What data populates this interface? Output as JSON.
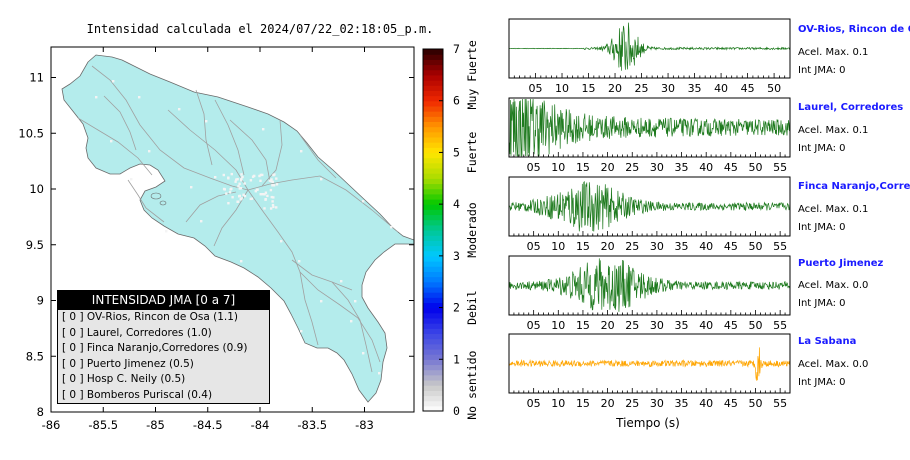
{
  "map": {
    "title": "Intensidad calculada el 2024/07/22_02:18:05_p.m.",
    "x_ticks": [
      "-86",
      "-85.5",
      "-85",
      "-84.5",
      "-84",
      "-83.5",
      "-83"
    ],
    "y_ticks": [
      "11",
      "10.5",
      "10",
      "9.5",
      "9",
      "8.5",
      "8"
    ],
    "land_color": "#b4ecec",
    "road_color": "#a0a0a0"
  },
  "colorbar": {
    "ticks": [
      "0",
      "1",
      "2",
      "3",
      "4",
      "5",
      "6",
      "7"
    ],
    "labels": [
      "No sentido",
      "Debil",
      "Moderado",
      "Fuerte",
      "Muy Fuerte"
    ]
  },
  "legend": {
    "header": "INTENSIDAD JMA [0 a 7]",
    "items": [
      "[ 0 ]  OV-Rios, Rincon de Osa (1.1)",
      "[ 0 ]  Laurel, Corredores (1.0)",
      "[ 0 ]  Finca Naranjo,Corredores (0.9)",
      "[ 0 ]  Puerto Jimenez (0.5)",
      "[ 0 ]  Hosp C. Neily (0.5)",
      "[ 0 ]  Bomberos Puriscal (0.4)"
    ]
  },
  "stations": [
    {
      "name": "OV-Rios, Rincon de Osa",
      "accel": "Acel. Max. 0.1",
      "jma": "Int JMA: 0",
      "color": "#1e7a1e",
      "ticks": [
        "05",
        "10",
        "15",
        "20",
        "25",
        "30",
        "35",
        "40",
        "45",
        "50"
      ]
    },
    {
      "name": "Laurel, Corredores",
      "accel": "Acel. Max. 0.1",
      "jma": "Int JMA: 0",
      "color": "#1e7a1e",
      "ticks": [
        "05",
        "10",
        "15",
        "20",
        "25",
        "30",
        "35",
        "40",
        "45",
        "50",
        "55"
      ]
    },
    {
      "name": "Finca Naranjo,Corredores",
      "accel": "Acel. Max. 0.1",
      "jma": "Int JMA: 0",
      "color": "#1e7a1e",
      "ticks": [
        "05",
        "10",
        "15",
        "20",
        "25",
        "30",
        "35",
        "40",
        "45",
        "50",
        "55"
      ]
    },
    {
      "name": "Puerto Jimenez",
      "accel": "Acel. Max. 0.0",
      "jma": "Int JMA: 0",
      "color": "#1e7a1e",
      "ticks": [
        "05",
        "10",
        "15",
        "20",
        "25",
        "30",
        "35",
        "40",
        "45",
        "50",
        "55"
      ]
    },
    {
      "name": "La Sabana",
      "accel": "Acel. Max. 0.0",
      "jma": "Int JMA: 0",
      "color": "#ffa500",
      "ticks": [
        "05",
        "10",
        "15",
        "20",
        "25",
        "30",
        "35",
        "40",
        "45",
        "50",
        "55"
      ]
    }
  ],
  "xlabel": "Tiempo (s)",
  "chart_data": [
    {
      "type": "heatmap",
      "title": "Intensidad calculada el 2024/07/22_02:18:05_p.m.",
      "xlim": [
        -86,
        -82.6
      ],
      "ylim": [
        8,
        11.3
      ],
      "colorbar_range": [
        0,
        7
      ],
      "colorbar_labels": [
        "No sentido",
        "Debil",
        "Moderado",
        "Fuerte",
        "Muy Fuerte"
      ]
    },
    {
      "type": "line",
      "xlabel": "Tiempo (s)",
      "panels": [
        {
          "name": "OV-Rios, Rincon de Osa",
          "xlim": [
            0,
            53
          ],
          "onset": 14,
          "peak_time": 22,
          "peak_amp": 1.0,
          "noise": 0.04
        },
        {
          "name": "Laurel, Corredores",
          "xlim": [
            0,
            57
          ],
          "onset": 0,
          "peak_time": 2,
          "peak_amp": 0.75,
          "noise": 0.3
        },
        {
          "name": "Finca Naranjo,Corredores",
          "xlim": [
            0,
            57
          ],
          "onset": 0,
          "peak_time": 16,
          "peak_amp": 0.85,
          "noise": 0.15
        },
        {
          "name": "Puerto Jimenez",
          "xlim": [
            0,
            57
          ],
          "onset": 0,
          "peak_time": 20,
          "peak_amp": 0.95,
          "noise": 0.15
        },
        {
          "name": "La Sabana",
          "xlim": [
            0,
            57
          ],
          "onset": 0,
          "peak_time": 50.5,
          "peak_amp": 0.85,
          "noise": 0.12
        }
      ]
    }
  ]
}
